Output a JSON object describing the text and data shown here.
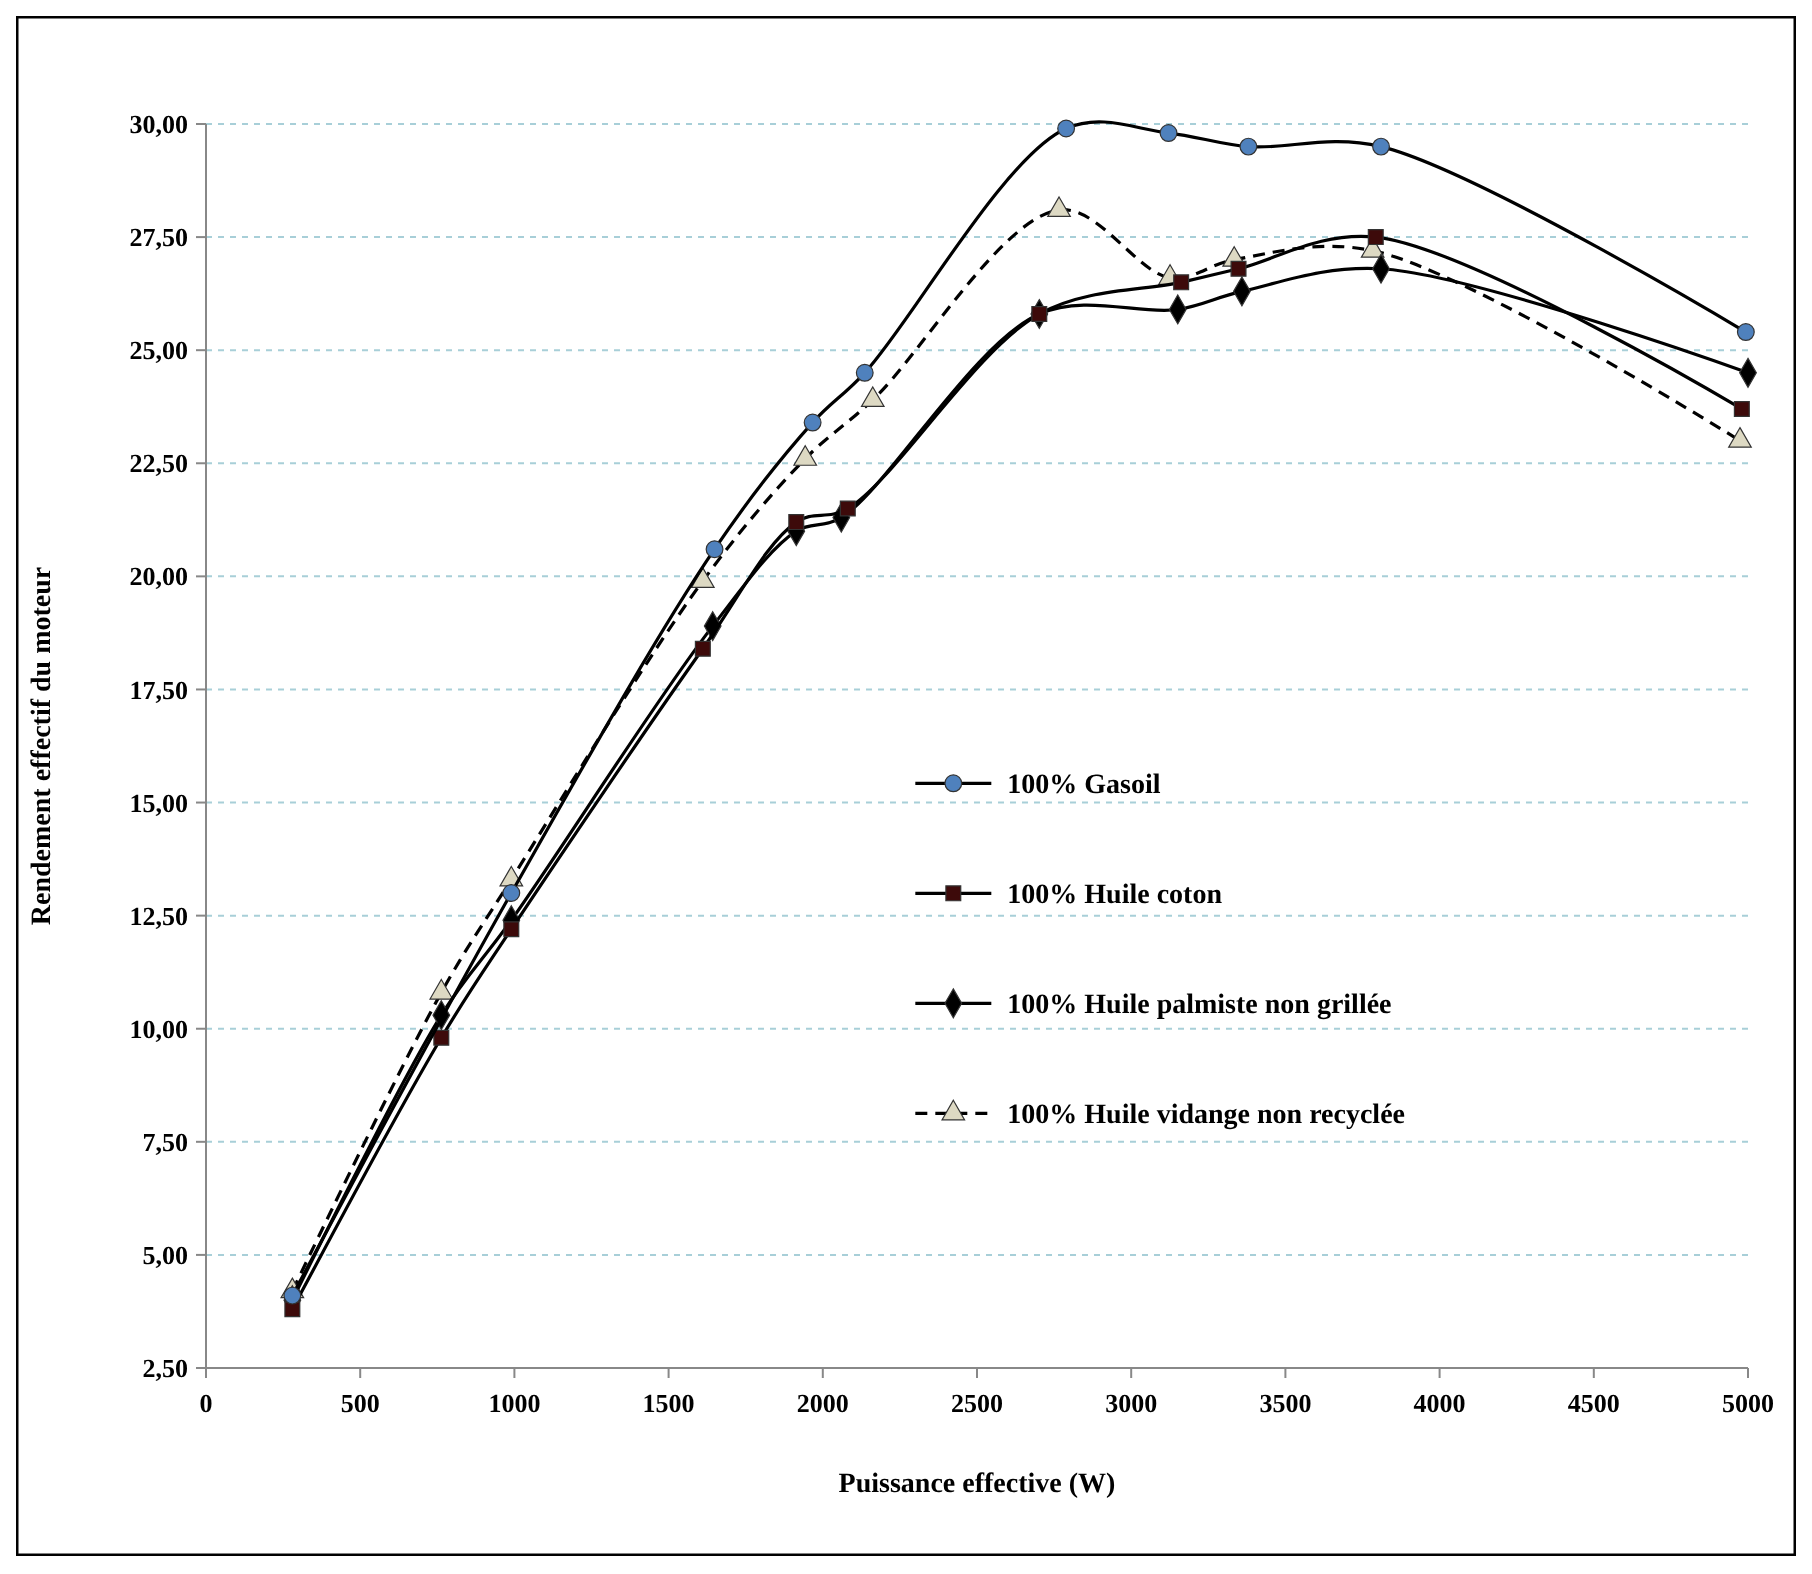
{
  "chart_data": {
    "type": "line",
    "xlabel": "Puissance effective (W)",
    "ylabel": "Rendement effectif du moteur",
    "xlim": [
      0,
      5000
    ],
    "xticks": [
      0,
      500,
      1000,
      1500,
      2000,
      2500,
      3000,
      3500,
      4000,
      4500,
      5000
    ],
    "ylim": [
      2.5,
      30
    ],
    "yticks": [
      {
        "value": 2.5,
        "label": "2,50"
      },
      {
        "value": 5,
        "label": "5,00"
      },
      {
        "value": 7.5,
        "label": "7,50"
      },
      {
        "value": 10,
        "label": "10,00"
      },
      {
        "value": 12.5,
        "label": "12,50"
      },
      {
        "value": 15,
        "label": "15,00"
      },
      {
        "value": 17.5,
        "label": "17,50"
      },
      {
        "value": 20,
        "label": "20,00"
      },
      {
        "value": 22.5,
        "label": "22,50"
      },
      {
        "value": 25,
        "label": "25,00"
      },
      {
        "value": 27.5,
        "label": "27,50"
      },
      {
        "value": 30,
        "label": "30,00"
      }
    ],
    "grid": "y",
    "legend": "right",
    "series": [
      {
        "name": "100% Gasoil",
        "color": "#4f81bd",
        "marker": "circle",
        "line_style": "solid",
        "x": [
          280,
          763,
          990,
          1649,
          1967,
          2136,
          2789,
          3121,
          3380,
          3810,
          4993
        ],
        "values": [
          4.1,
          null,
          13.0,
          20.6,
          23.4,
          24.5,
          29.9,
          29.8,
          29.5,
          29.5,
          25.4
        ]
      },
      {
        "name": "100% Huile coton",
        "color": "#3d0a0a",
        "marker": "square",
        "line_style": "solid",
        "x": [
          280,
          763,
          990,
          1611,
          1914,
          2081,
          2702,
          3162,
          3348,
          3793,
          4980
        ],
        "values": [
          3.8,
          9.8,
          12.2,
          18.4,
          21.2,
          21.5,
          25.8,
          26.5,
          26.8,
          27.5,
          23.7
        ]
      },
      {
        "name": "100% Huile palmiste non grillée",
        "color": "#000000",
        "marker": "diamond",
        "line_style": "solid",
        "x": [
          280,
          763,
          990,
          1643,
          1914,
          2060,
          2702,
          3151,
          3359,
          3810,
          5000
        ],
        "values": [
          4.0,
          10.3,
          12.4,
          18.9,
          21.0,
          21.3,
          25.8,
          25.9,
          26.3,
          26.8,
          24.5
        ]
      },
      {
        "name": "100% Huile vidange non recyclée",
        "color": "#ddd9c3",
        "marker": "triangle",
        "line_style": "dashed",
        "x": [
          280,
          763,
          990,
          1611,
          1943,
          2162,
          2766,
          3126,
          3334,
          3783,
          4974
        ],
        "values": [
          4.2,
          10.8,
          13.3,
          19.9,
          22.6,
          23.9,
          28.1,
          26.6,
          27.0,
          27.2,
          23.0
        ]
      }
    ]
  }
}
